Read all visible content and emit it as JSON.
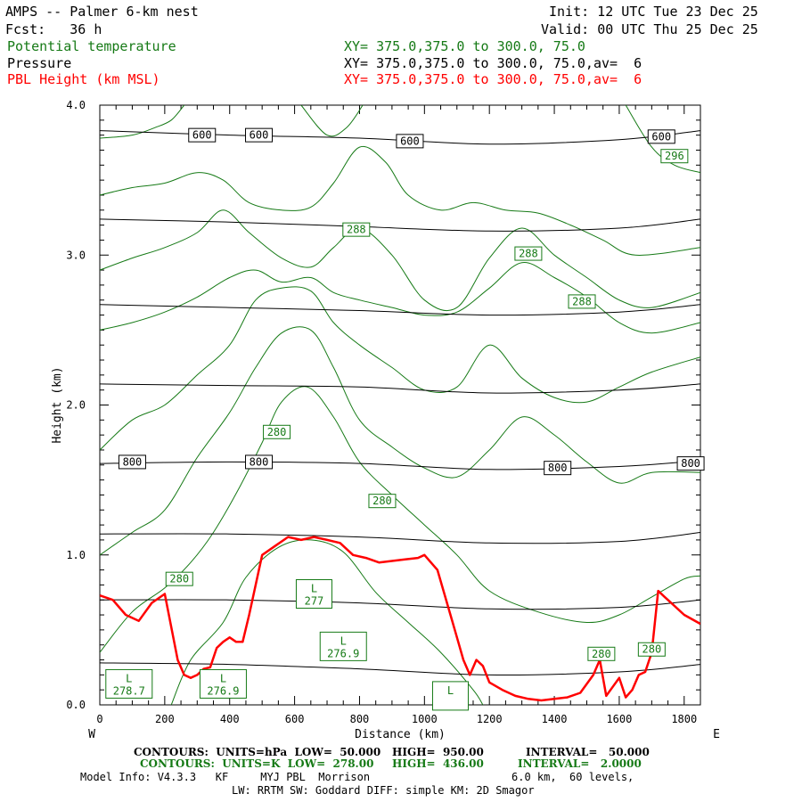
{
  "header": {
    "title": "AMPS -- Palmer 6-km nest",
    "fcst": "Fcst:   36 h",
    "init": "Init: 12 UTC Tue 23 Dec 25",
    "valid": "Valid: 00 UTC Thu 25 Dec 25",
    "field1": "Potential temperature",
    "field2": "Pressure",
    "field3": "PBL Height (km MSL)",
    "xs1": "XY= 375.0,375.0 to 300.0, 75.0",
    "xs2": "XY= 375.0,375.0 to 300.0, 75.0,av=  6",
    "xs3": "XY= 375.0,375.0 to 300.0, 75.0,av=  6"
  },
  "footer": {
    "c1_label": "CONTOURS:  UNITS=hPa  LOW=  50.000",
    "c1_high": "HIGH=  950.00",
    "c1_int": "INTERVAL=   50.000",
    "c2_label": "CONTOURS:  UNITS=K  LOW=  278.00",
    "c2_high": "HIGH=  436.00",
    "c2_int": "INTERVAL=   2.0000",
    "model1": "Model Info: V4.3.3   KF     MYJ PBL  Morrison",
    "model2": "6.0 km,  60 levels,",
    "model3": "LW: RRTM SW: Goddard DIFF: simple KM: 2D Smagor"
  },
  "colors": {
    "theta": "#167a16",
    "pressure": "#000000",
    "pbl": "#ff0000"
  },
  "chart_data": {
    "type": "line",
    "title": "Cross section: Potential temperature, Pressure, PBL Height",
    "xlabel": "Distance (km)",
    "ylabel": "Height (km)",
    "xlim": [
      0,
      1850
    ],
    "ylim": [
      0,
      4.0
    ],
    "x_ticks": [
      0,
      200,
      400,
      600,
      800,
      1000,
      1200,
      1400,
      1600,
      1800
    ],
    "y_ticks": [
      0.0,
      1.0,
      2.0,
      3.0,
      4.0
    ],
    "y_tick_labels": [
      "0.0",
      "1.0",
      "2.0",
      "3.0",
      "4.0"
    ],
    "end_labels": {
      "left": "W",
      "right": "E"
    },
    "pressure_contours": [
      {
        "level": 800,
        "points": [
          [
            0,
            1.61
          ],
          [
            400,
            1.62
          ],
          [
            800,
            1.61
          ],
          [
            1200,
            1.57
          ],
          [
            1600,
            1.59
          ],
          [
            1850,
            1.63
          ]
        ]
      },
      {
        "level": 850,
        "points": [
          [
            0,
            1.14
          ],
          [
            400,
            1.14
          ],
          [
            800,
            1.12
          ],
          [
            1200,
            1.08
          ],
          [
            1600,
            1.09
          ],
          [
            1850,
            1.15
          ]
        ]
      },
      {
        "level": 900,
        "points": [
          [
            0,
            0.7
          ],
          [
            400,
            0.7
          ],
          [
            800,
            0.68
          ],
          [
            1200,
            0.64
          ],
          [
            1600,
            0.65
          ],
          [
            1850,
            0.7
          ]
        ]
      },
      {
        "level": 950,
        "points": [
          [
            0,
            0.28
          ],
          [
            400,
            0.27
          ],
          [
            800,
            0.24
          ],
          [
            1200,
            0.2
          ],
          [
            1600,
            0.22
          ],
          [
            1850,
            0.27
          ]
        ]
      },
      {
        "level": 750,
        "points": [
          [
            0,
            2.14
          ],
          [
            400,
            2.13
          ],
          [
            800,
            2.12
          ],
          [
            1200,
            2.08
          ],
          [
            1600,
            2.1
          ],
          [
            1850,
            2.14
          ]
        ]
      },
      {
        "level": 700,
        "points": [
          [
            0,
            2.67
          ],
          [
            400,
            2.65
          ],
          [
            800,
            2.63
          ],
          [
            1200,
            2.6
          ],
          [
            1600,
            2.62
          ],
          [
            1850,
            2.67
          ]
        ]
      },
      {
        "level": 650,
        "points": [
          [
            0,
            3.24
          ],
          [
            400,
            3.22
          ],
          [
            800,
            3.19
          ],
          [
            1200,
            3.16
          ],
          [
            1600,
            3.18
          ],
          [
            1850,
            3.24
          ]
        ]
      },
      {
        "level": 600,
        "points": [
          [
            0,
            3.83
          ],
          [
            400,
            3.8
          ],
          [
            800,
            3.78
          ],
          [
            1200,
            3.74
          ],
          [
            1600,
            3.77
          ],
          [
            1850,
            3.83
          ]
        ]
      }
    ],
    "pressure_labels": [
      {
        "text": "600",
        "x": 315,
        "y": 3.8
      },
      {
        "text": "600",
        "x": 490,
        "y": 3.8
      },
      {
        "text": "600",
        "x": 955,
        "y": 3.76
      },
      {
        "text": "600",
        "x": 1730,
        "y": 3.79
      },
      {
        "text": "800",
        "x": 100,
        "y": 1.62
      },
      {
        "text": "800",
        "x": 490,
        "y": 1.62
      },
      {
        "text": "800",
        "x": 1410,
        "y": 1.58
      },
      {
        "text": "800",
        "x": 1820,
        "y": 1.61
      }
    ],
    "theta_contours": [
      {
        "level": 278,
        "points": [
          [
            220,
            0.0
          ],
          [
            280,
            0.3
          ],
          [
            380,
            0.55
          ],
          [
            450,
            0.85
          ],
          [
            550,
            1.05
          ],
          [
            650,
            1.1
          ],
          [
            750,
            1.02
          ],
          [
            850,
            0.75
          ],
          [
            950,
            0.55
          ],
          [
            1050,
            0.35
          ],
          [
            1150,
            0.1
          ],
          [
            1180,
            0.0
          ]
        ]
      },
      {
        "level": 280,
        "points": [
          [
            0,
            0.35
          ],
          [
            100,
            0.62
          ],
          [
            200,
            0.78
          ],
          [
            280,
            0.95
          ],
          [
            350,
            1.15
          ],
          [
            430,
            1.45
          ],
          [
            500,
            1.75
          ],
          [
            560,
            2.02
          ],
          [
            640,
            2.12
          ],
          [
            720,
            1.92
          ],
          [
            800,
            1.62
          ],
          [
            900,
            1.4
          ],
          [
            1000,
            1.2
          ],
          [
            1100,
            1.0
          ],
          [
            1200,
            0.76
          ],
          [
            1350,
            0.62
          ],
          [
            1500,
            0.55
          ],
          [
            1600,
            0.6
          ],
          [
            1700,
            0.72
          ],
          [
            1800,
            0.84
          ],
          [
            1850,
            0.86
          ]
        ]
      },
      {
        "level": 282,
        "points": [
          [
            0,
            1.0
          ],
          [
            100,
            1.15
          ],
          [
            200,
            1.3
          ],
          [
            300,
            1.65
          ],
          [
            400,
            1.95
          ],
          [
            480,
            2.25
          ],
          [
            560,
            2.48
          ],
          [
            650,
            2.5
          ],
          [
            720,
            2.25
          ],
          [
            800,
            1.9
          ],
          [
            900,
            1.72
          ],
          [
            1000,
            1.58
          ],
          [
            1100,
            1.52
          ],
          [
            1200,
            1.7
          ],
          [
            1300,
            1.92
          ],
          [
            1400,
            1.8
          ],
          [
            1500,
            1.62
          ],
          [
            1600,
            1.48
          ],
          [
            1700,
            1.55
          ],
          [
            1850,
            1.55
          ]
        ]
      },
      {
        "level": 284,
        "points": [
          [
            0,
            1.7
          ],
          [
            100,
            1.9
          ],
          [
            200,
            2.0
          ],
          [
            300,
            2.2
          ],
          [
            400,
            2.4
          ],
          [
            480,
            2.7
          ],
          [
            560,
            2.78
          ],
          [
            650,
            2.76
          ],
          [
            720,
            2.55
          ],
          [
            800,
            2.4
          ],
          [
            900,
            2.25
          ],
          [
            1000,
            2.1
          ],
          [
            1100,
            2.12
          ],
          [
            1200,
            2.4
          ],
          [
            1300,
            2.18
          ],
          [
            1400,
            2.05
          ],
          [
            1500,
            2.02
          ],
          [
            1600,
            2.12
          ],
          [
            1700,
            2.22
          ],
          [
            1850,
            2.32
          ]
        ]
      },
      {
        "level": 286,
        "points": [
          [
            0,
            2.5
          ],
          [
            100,
            2.55
          ],
          [
            200,
            2.62
          ],
          [
            300,
            2.72
          ],
          [
            400,
            2.85
          ],
          [
            480,
            2.9
          ],
          [
            560,
            2.82
          ],
          [
            650,
            2.85
          ],
          [
            720,
            2.75
          ],
          [
            800,
            2.7
          ],
          [
            900,
            2.65
          ],
          [
            1000,
            2.6
          ],
          [
            1100,
            2.62
          ],
          [
            1200,
            2.78
          ],
          [
            1300,
            2.95
          ],
          [
            1400,
            2.85
          ],
          [
            1500,
            2.72
          ],
          [
            1600,
            2.55
          ],
          [
            1700,
            2.48
          ],
          [
            1850,
            2.55
          ]
        ]
      },
      {
        "level": 288,
        "points": [
          [
            0,
            2.9
          ],
          [
            100,
            2.98
          ],
          [
            200,
            3.05
          ],
          [
            300,
            3.15
          ],
          [
            380,
            3.3
          ],
          [
            460,
            3.15
          ],
          [
            560,
            2.98
          ],
          [
            650,
            2.92
          ],
          [
            720,
            3.05
          ],
          [
            800,
            3.18
          ],
          [
            900,
            3.0
          ],
          [
            1000,
            2.7
          ],
          [
            1100,
            2.65
          ],
          [
            1200,
            2.98
          ],
          [
            1300,
            3.18
          ],
          [
            1400,
            3.0
          ],
          [
            1500,
            2.85
          ],
          [
            1600,
            2.7
          ],
          [
            1700,
            2.65
          ],
          [
            1850,
            2.75
          ]
        ]
      },
      {
        "level": 290,
        "points": [
          [
            0,
            3.4
          ],
          [
            100,
            3.45
          ],
          [
            200,
            3.48
          ],
          [
            300,
            3.55
          ],
          [
            380,
            3.5
          ],
          [
            460,
            3.35
          ],
          [
            560,
            3.3
          ],
          [
            650,
            3.32
          ],
          [
            720,
            3.48
          ],
          [
            800,
            3.72
          ],
          [
            880,
            3.62
          ],
          [
            950,
            3.4
          ],
          [
            1050,
            3.3
          ],
          [
            1150,
            3.35
          ],
          [
            1250,
            3.3
          ],
          [
            1350,
            3.28
          ],
          [
            1450,
            3.2
          ],
          [
            1550,
            3.1
          ],
          [
            1650,
            3.0
          ],
          [
            1850,
            3.05
          ]
        ]
      },
      {
        "level": 292,
        "points": [
          [
            0,
            3.78
          ],
          [
            100,
            3.8
          ],
          [
            170,
            3.85
          ],
          [
            220,
            3.9
          ],
          [
            260,
            4.0
          ]
        ]
      },
      {
        "level": 294,
        "points": [
          [
            620,
            4.0
          ],
          [
            700,
            3.8
          ],
          [
            760,
            3.85
          ],
          [
            810,
            4.0
          ]
        ]
      },
      {
        "level": 296,
        "points": [
          [
            1620,
            4.0
          ],
          [
            1700,
            3.72
          ],
          [
            1770,
            3.6
          ],
          [
            1850,
            3.55
          ]
        ]
      }
    ],
    "theta_labels": [
      {
        "text": "296",
        "x": 1770,
        "y": 3.66
      },
      {
        "text": "288",
        "x": 790,
        "y": 3.17
      },
      {
        "text": "288",
        "x": 1320,
        "y": 3.01
      },
      {
        "text": "288",
        "x": 1485,
        "y": 2.69
      },
      {
        "text": "280",
        "x": 545,
        "y": 1.82
      },
      {
        "text": "280",
        "x": 870,
        "y": 1.36
      },
      {
        "text": "280",
        "x": 245,
        "y": 0.84
      },
      {
        "text": "280",
        "x": 1545,
        "y": 0.34
      },
      {
        "text": "280",
        "x": 1700,
        "y": 0.37
      }
    ],
    "lows": [
      {
        "marker": "L",
        "value": "277",
        "x": 660,
        "y": 0.74
      },
      {
        "marker": "L",
        "value": "276.9",
        "x": 750,
        "y": 0.39
      },
      {
        "marker": "L",
        "value": "278.7",
        "x": 90,
        "y": 0.14
      },
      {
        "marker": "L",
        "value": "276.9",
        "x": 380,
        "y": 0.14
      },
      {
        "marker": "L",
        "value": "",
        "x": 1080,
        "y": 0.06
      }
    ],
    "pbl_height": {
      "x": [
        0,
        40,
        80,
        120,
        160,
        200,
        240,
        260,
        280,
        300,
        320,
        340,
        360,
        380,
        400,
        420,
        440,
        460,
        500,
        540,
        580,
        620,
        660,
        700,
        740,
        780,
        820,
        860,
        900,
        940,
        980,
        1000,
        1040,
        1080,
        1100,
        1120,
        1140,
        1160,
        1180,
        1200,
        1240,
        1280,
        1320,
        1360,
        1400,
        1440,
        1480,
        1520,
        1540,
        1560,
        1580,
        1600,
        1620,
        1640,
        1660,
        1680,
        1700,
        1720,
        1740,
        1760,
        1800,
        1850
      ],
      "y": [
        0.73,
        0.7,
        0.6,
        0.56,
        0.68,
        0.74,
        0.3,
        0.2,
        0.18,
        0.2,
        0.24,
        0.25,
        0.38,
        0.42,
        0.45,
        0.42,
        0.42,
        0.6,
        1.0,
        1.06,
        1.12,
        1.1,
        1.12,
        1.1,
        1.08,
        1.0,
        0.98,
        0.95,
        0.96,
        0.97,
        0.98,
        1.0,
        0.9,
        0.6,
        0.45,
        0.3,
        0.2,
        0.3,
        0.26,
        0.15,
        0.1,
        0.06,
        0.04,
        0.03,
        0.04,
        0.05,
        0.08,
        0.2,
        0.3,
        0.06,
        0.12,
        0.18,
        0.05,
        0.1,
        0.2,
        0.22,
        0.35,
        0.76,
        0.72,
        0.68,
        0.6,
        0.54
      ]
    }
  }
}
